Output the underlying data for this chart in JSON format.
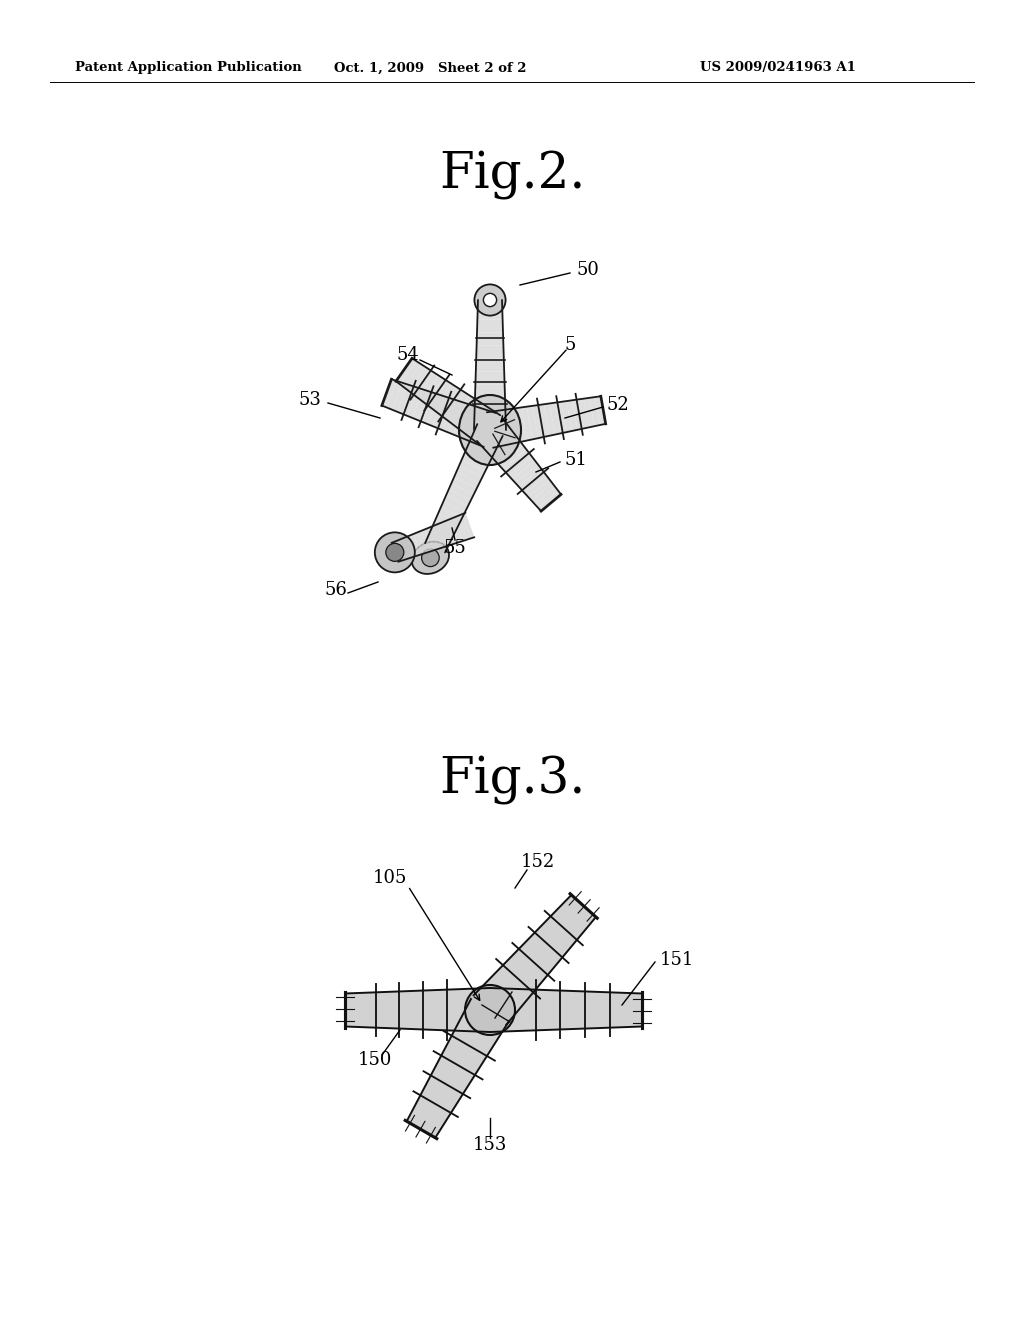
{
  "bg_color": "#ffffff",
  "header_left": "Patent Application Publication",
  "header_center": "Oct. 1, 2009   Sheet 2 of 2",
  "header_right": "US 2009/0241963 A1",
  "fig2_title": "Fig.2.",
  "fig3_title": "Fig.3."
}
